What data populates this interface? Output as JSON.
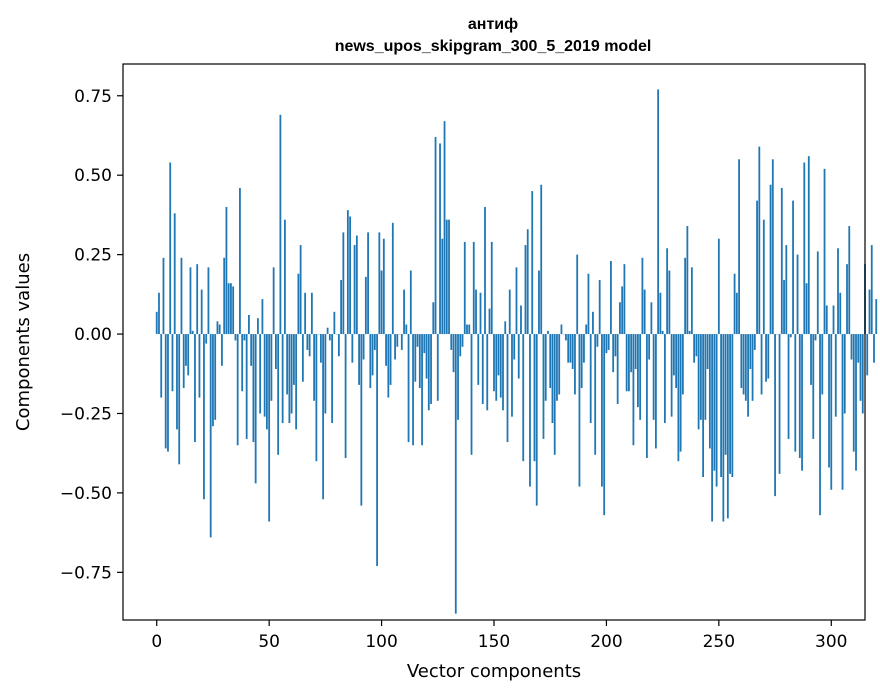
{
  "chart_data": {
    "type": "bar",
    "title_line1": "антиф",
    "title_line2": "news_upos_skipgram_300_5_2019 model",
    "xlabel": "Vector components",
    "ylabel": "Components values",
    "xlim": [
      -15,
      315
    ],
    "ylim": [
      -0.9,
      0.85
    ],
    "xticks": [
      0,
      50,
      100,
      150,
      200,
      250,
      300
    ],
    "yticks": [
      -0.75,
      -0.5,
      -0.25,
      0.0,
      0.25,
      0.5,
      0.75
    ],
    "ytick_labels": [
      "−0.75",
      "−0.50",
      "−0.25",
      "0.00",
      "0.25",
      "0.50",
      "0.75"
    ],
    "grid": false,
    "bar_color": "#1f77b4",
    "values": [
      0.07,
      0.13,
      -0.2,
      0.24,
      -0.36,
      -0.37,
      0.54,
      -0.18,
      0.38,
      -0.3,
      -0.41,
      0.24,
      -0.17,
      -0.1,
      -0.13,
      0.21,
      0.01,
      -0.34,
      0.22,
      -0.2,
      0.14,
      -0.52,
      -0.03,
      0.21,
      -0.64,
      -0.29,
      -0.27,
      0.04,
      0.03,
      -0.1,
      0.24,
      0.4,
      0.16,
      0.16,
      0.15,
      -0.02,
      -0.35,
      0.46,
      -0.18,
      -0.02,
      -0.33,
      0.06,
      -0.1,
      -0.34,
      -0.47,
      0.05,
      -0.25,
      0.11,
      -0.26,
      -0.3,
      -0.59,
      -0.21,
      0.21,
      -0.11,
      -0.38,
      0.69,
      -0.28,
      0.36,
      -0.19,
      -0.28,
      -0.25,
      -0.16,
      -0.3,
      0.19,
      0.28,
      -0.15,
      0.13,
      -0.05,
      -0.07,
      0.13,
      -0.21,
      -0.4,
      0.0,
      -0.09,
      -0.52,
      -0.25,
      0.02,
      -0.02,
      -0.28,
      0.07,
      0.0,
      -0.07,
      0.17,
      0.32,
      -0.39,
      0.39,
      0.37,
      -0.09,
      0.28,
      0.31,
      -0.16,
      -0.54,
      -0.08,
      0.18,
      0.32,
      -0.17,
      -0.13,
      -0.05,
      -0.73,
      0.32,
      0.2,
      0.3,
      -0.1,
      -0.2,
      -0.16,
      0.35,
      -0.08,
      -0.04,
      0.0,
      -0.05,
      0.14,
      0.03,
      -0.34,
      0.2,
      -0.35,
      -0.15,
      -0.04,
      -0.17,
      -0.35,
      -0.06,
      -0.14,
      -0.24,
      -0.22,
      0.1,
      0.62,
      -0.21,
      0.6,
      0.3,
      0.67,
      0.36,
      0.36,
      -0.05,
      -0.12,
      -0.88,
      -0.27,
      -0.07,
      -0.04,
      0.29,
      0.03,
      0.03,
      -0.38,
      0.29,
      0.14,
      -0.16,
      0.13,
      -0.22,
      0.4,
      -0.24,
      0.08,
      0.29,
      -0.18,
      -0.21,
      -0.13,
      -0.2,
      -0.24,
      0.04,
      -0.34,
      0.14,
      -0.26,
      -0.08,
      0.21,
      -0.14,
      0.09,
      -0.4,
      0.28,
      0.33,
      -0.48,
      0.45,
      -0.4,
      -0.54,
      0.2,
      0.47,
      -0.33,
      -0.21,
      0.01,
      -0.17,
      -0.28,
      -0.38,
      -0.21,
      -0.19,
      0.03,
      0.0,
      -0.02,
      -0.09,
      -0.09,
      -0.11,
      -0.19,
      0.25,
      -0.48,
      -0.17,
      -0.09,
      0.03,
      0.19,
      -0.28,
      0.07,
      -0.38,
      -0.04,
      0.17,
      -0.48,
      -0.57,
      -0.06,
      -0.05,
      0.23,
      -0.12,
      -0.07,
      -0.22,
      0.1,
      0.15,
      0.22,
      -0.18,
      -0.18,
      -0.12,
      -0.35,
      -0.11,
      -0.23,
      -0.27,
      0.24,
      0.14,
      -0.39,
      -0.08,
      0.1,
      -0.27,
      -0.36,
      0.77,
      0.13,
      0.01,
      -0.28,
      0.27,
      0.2,
      -0.26,
      -0.13,
      -0.17,
      -0.4,
      -0.37,
      -0.19,
      0.24,
      0.34,
      0.01,
      0.21,
      -0.09,
      -0.07,
      -0.3,
      -0.27,
      -0.45,
      -0.27,
      -0.11,
      -0.36,
      -0.59,
      -0.43,
      -0.48,
      0.3,
      -0.45,
      -0.59,
      -0.38,
      -0.58,
      -0.44,
      -0.45,
      0.19,
      0.13,
      0.55,
      -0.17,
      -0.19,
      -0.21,
      -0.26,
      -0.11,
      -0.21,
      -0.05,
      0.42,
      0.59,
      -0.19,
      0.36,
      -0.15,
      -0.14,
      0.47,
      0.55,
      -0.51,
      0.0,
      -0.44,
      0.46,
      0.17,
      0.28,
      -0.33,
      -0.01,
      0.42,
      -0.37,
      0.25,
      -0.39,
      -0.43,
      0.54,
      0.16,
      0.56,
      -0.16,
      -0.33,
      -0.02,
      0.26,
      -0.57,
      -0.19,
      0.52,
      0.09,
      -0.42,
      -0.49,
      0.09,
      -0.26,
      0.27,
      0.13,
      -0.49,
      -0.25,
      0.22,
      0.34,
      -0.08,
      -0.37,
      -0.43,
      -0.09,
      -0.21,
      -0.25,
      0.22,
      -0.13,
      0.14,
      0.28,
      -0.09,
      0.11
    ]
  }
}
